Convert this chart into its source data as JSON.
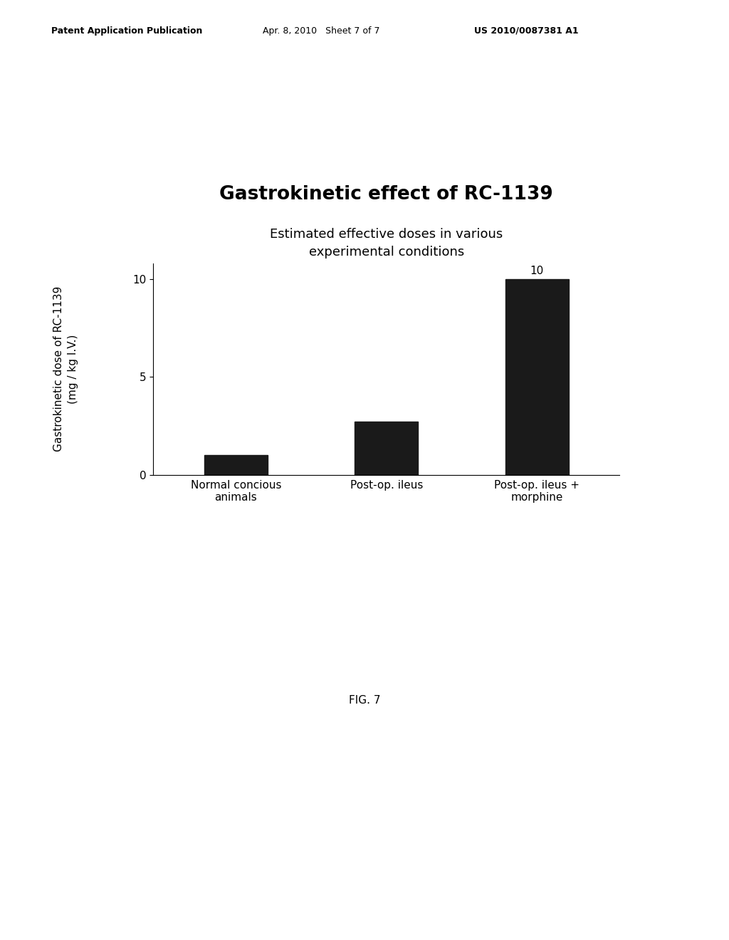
{
  "title": "Gastrokinetic effect of RC-1139",
  "subtitle": "Estimated effective doses in various\nexperimental conditions",
  "categories": [
    "Normal concious\nanimals",
    "Post-op. ileus",
    "Post-op. ileus +\nmorphine"
  ],
  "values": [
    1.0,
    2.7,
    10.0
  ],
  "bar_color": "#1a1a1a",
  "ylabel_line1": "Gastrokinetic dose of RC-1139",
  "ylabel_line2": "(mg / kg I.V.)",
  "ylim": [
    0,
    10.8
  ],
  "yticks": [
    0,
    5,
    10
  ],
  "bar_width": 0.42,
  "value_label": "10",
  "value_label_bar_index": 2,
  "background_color": "#ffffff",
  "title_fontsize": 19,
  "subtitle_fontsize": 13,
  "tick_fontsize": 11,
  "ylabel_fontsize": 11,
  "xlabel_fontsize": 11,
  "header_left": "Patent Application Publication",
  "header_mid": "Apr. 8, 2010   Sheet 7 of 7",
  "header_right": "US 2010/0087381 A1",
  "fig_label": "FIG. 7"
}
